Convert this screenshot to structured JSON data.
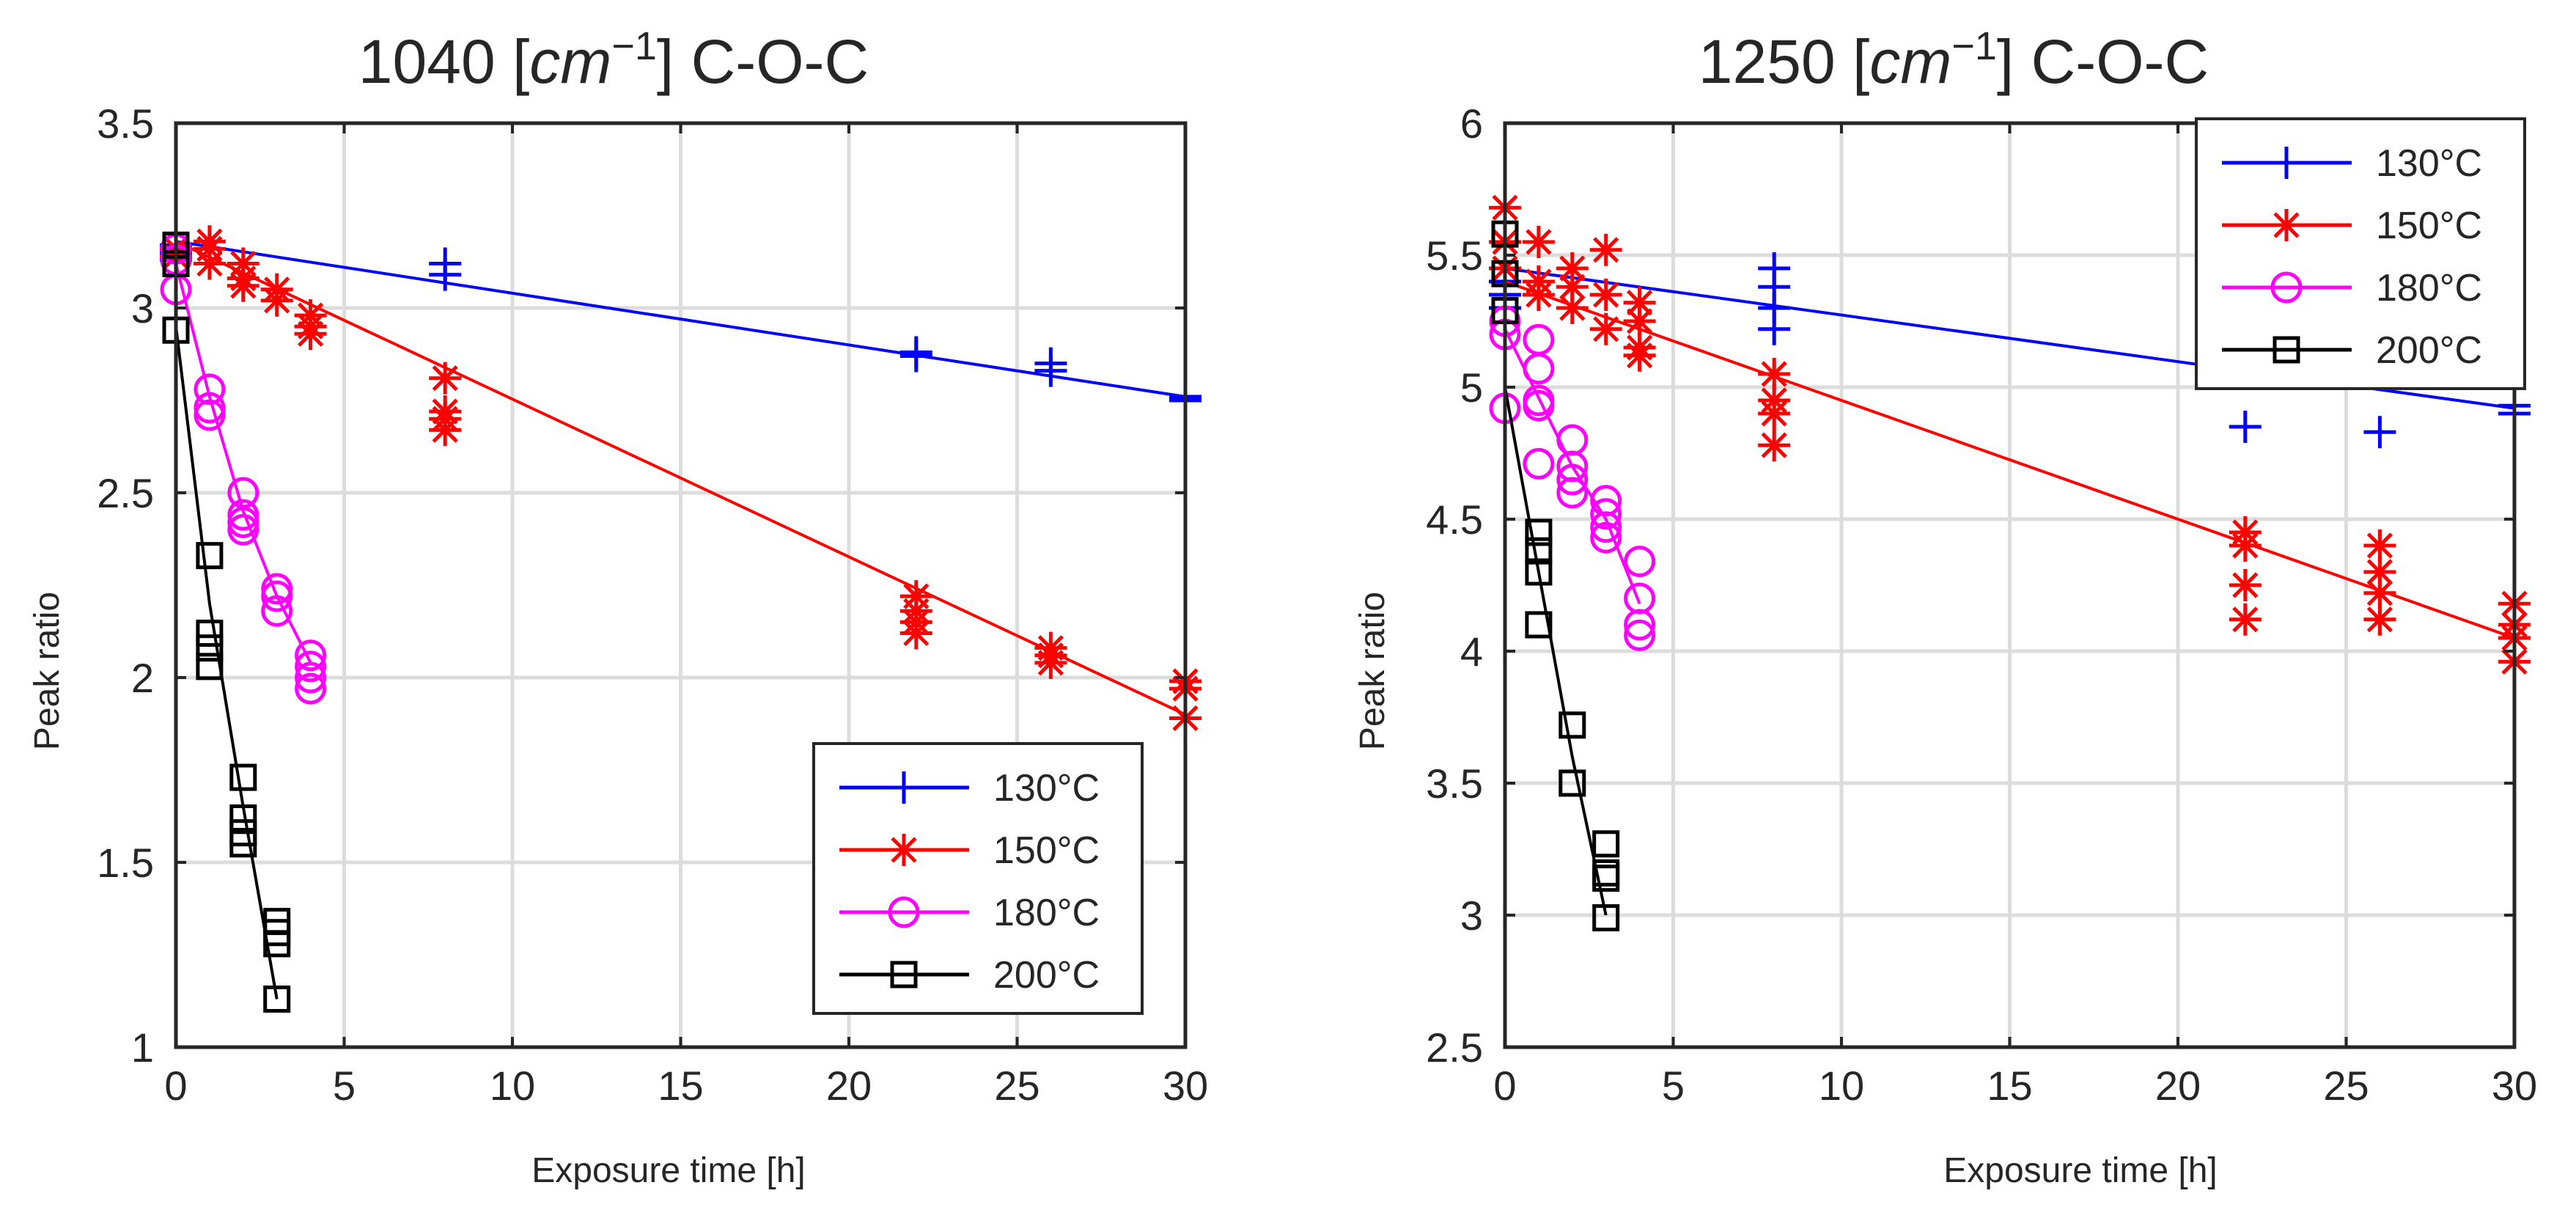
{
  "chart_data": [
    {
      "type": "line",
      "title": "1040 [cm⁻¹] C-O-C",
      "title_parts": {
        "prefix": "1040 [",
        "unit": "cm",
        "exponent": "−1",
        "suffix": "] C-O-C"
      },
      "xlabel": "Exposure time [h]",
      "ylabel": "Peak ratio",
      "xlim": [
        0,
        30
      ],
      "ylim": [
        1,
        3.5
      ],
      "xticks": [
        0,
        5,
        10,
        15,
        20,
        25,
        30
      ],
      "yticks": [
        1,
        1.5,
        2,
        2.5,
        3,
        3.5
      ],
      "ytick_labels": [
        "1",
        "1.5",
        "2",
        "2.5",
        "3",
        "3.5"
      ],
      "grid": true,
      "legend_position": "bottom-right",
      "series": [
        {
          "name": "130°C",
          "color": "#0000ff",
          "marker": "plus",
          "fit": [
            [
              0,
              3.18
            ],
            [
              30,
              2.76
            ]
          ],
          "points": [
            [
              0,
              3.17
            ],
            [
              0,
              3.15
            ],
            [
              0,
              3.13
            ],
            [
              8,
              3.12
            ],
            [
              8,
              3.09
            ],
            [
              22,
              2.88
            ],
            [
              22,
              2.87
            ],
            [
              26,
              2.85
            ],
            [
              26,
              2.83
            ],
            [
              30,
              2.76
            ],
            [
              30,
              2.75
            ]
          ]
        },
        {
          "name": "150°C",
          "color": "#ff0000",
          "marker": "asterisk",
          "fit": [
            [
              0,
              3.18
            ],
            [
              30,
              1.9
            ]
          ],
          "points": [
            [
              0,
              3.16
            ],
            [
              0,
              3.14
            ],
            [
              1,
              3.18
            ],
            [
              1,
              3.16
            ],
            [
              1,
              3.12
            ],
            [
              2,
              3.12
            ],
            [
              2,
              3.08
            ],
            [
              2,
              3.06
            ],
            [
              3,
              3.05
            ],
            [
              3,
              3.02
            ],
            [
              4,
              2.98
            ],
            [
              4,
              2.95
            ],
            [
              4,
              2.93
            ],
            [
              8,
              2.81
            ],
            [
              8,
              2.72
            ],
            [
              8,
              2.7
            ],
            [
              8,
              2.67
            ],
            [
              22,
              2.22
            ],
            [
              22,
              2.18
            ],
            [
              22,
              2.15
            ],
            [
              22,
              2.12
            ],
            [
              26,
              2.08
            ],
            [
              26,
              2.06
            ],
            [
              26,
              2.04
            ],
            [
              30,
              1.99
            ],
            [
              30,
              1.97
            ],
            [
              30,
              1.89
            ]
          ]
        },
        {
          "name": "180°C",
          "color": "#ff00ff",
          "marker": "circle",
          "fit": [
            [
              0,
              3.12
            ],
            [
              1,
              2.76
            ],
            [
              2,
              2.45
            ],
            [
              3,
              2.22
            ],
            [
              4,
              2.04
            ]
          ],
          "points": [
            [
              0,
              3.16
            ],
            [
              0,
              3.13
            ],
            [
              0,
              3.05
            ],
            [
              1,
              2.78
            ],
            [
              1,
              2.73
            ],
            [
              1,
              2.71
            ],
            [
              2,
              2.5
            ],
            [
              2,
              2.44
            ],
            [
              2,
              2.42
            ],
            [
              2,
              2.4
            ],
            [
              3,
              2.24
            ],
            [
              3,
              2.22
            ],
            [
              3,
              2.18
            ],
            [
              4,
              2.06
            ],
            [
              4,
              2.03
            ],
            [
              4,
              2.0
            ],
            [
              4,
              1.97
            ]
          ]
        },
        {
          "name": "200°C",
          "color": "#000000",
          "marker": "square",
          "fit": [
            [
              0,
              2.95
            ],
            [
              1,
              2.2
            ],
            [
              2,
              1.65
            ],
            [
              3,
              1.13
            ]
          ],
          "points": [
            [
              0,
              3.17
            ],
            [
              0,
              3.12
            ],
            [
              0,
              2.94
            ],
            [
              1,
              2.33
            ],
            [
              1,
              2.12
            ],
            [
              1,
              2.08
            ],
            [
              1,
              2.03
            ],
            [
              2,
              1.73
            ],
            [
              2,
              1.62
            ],
            [
              2,
              1.58
            ],
            [
              2,
              1.55
            ],
            [
              3,
              1.34
            ],
            [
              3,
              1.31
            ],
            [
              3,
              1.28
            ],
            [
              3,
              1.13
            ]
          ]
        }
      ]
    },
    {
      "type": "line",
      "title": "1250 [cm⁻¹] C-O-C",
      "title_parts": {
        "prefix": "1250 [",
        "unit": "cm",
        "exponent": "−1",
        "suffix": "] C-O-C"
      },
      "xlabel": "Exposure time [h]",
      "ylabel": "Peak ratio",
      "xlim": [
        0,
        30
      ],
      "ylim": [
        2.5,
        6
      ],
      "xticks": [
        0,
        5,
        10,
        15,
        20,
        25,
        30
      ],
      "yticks": [
        2.5,
        3,
        3.5,
        4,
        4.5,
        5,
        5.5,
        6
      ],
      "ytick_labels": [
        "2.5",
        "3",
        "3.5",
        "4",
        "4.5",
        "5",
        "5.5",
        "6"
      ],
      "grid": true,
      "legend_position": "top-right",
      "series": [
        {
          "name": "130°C",
          "color": "#0000ff",
          "marker": "plus",
          "fit": [
            [
              0,
              5.45
            ],
            [
              30,
              4.92
            ]
          ],
          "points": [
            [
              0,
              5.4
            ],
            [
              0,
              5.35
            ],
            [
              0,
              5.3
            ],
            [
              8,
              5.45
            ],
            [
              8,
              5.38
            ],
            [
              8,
              5.3
            ],
            [
              8,
              5.22
            ],
            [
              22,
              4.85
            ],
            [
              26,
              4.83
            ],
            [
              30,
              4.93
            ],
            [
              30,
              4.9
            ]
          ]
        },
        {
          "name": "150°C",
          "color": "#ff0000",
          "marker": "asterisk",
          "fit": [
            [
              0,
              5.4
            ],
            [
              30,
              4.05
            ]
          ],
          "points": [
            [
              0,
              5.68
            ],
            [
              0,
              5.55
            ],
            [
              0,
              5.45
            ],
            [
              1,
              5.55
            ],
            [
              1,
              5.4
            ],
            [
              1,
              5.35
            ],
            [
              2,
              5.45
            ],
            [
              2,
              5.38
            ],
            [
              2,
              5.3
            ],
            [
              3,
              5.52
            ],
            [
              3,
              5.35
            ],
            [
              3,
              5.22
            ],
            [
              4,
              5.32
            ],
            [
              4,
              5.25
            ],
            [
              4,
              5.15
            ],
            [
              4,
              5.12
            ],
            [
              8,
              5.05
            ],
            [
              8,
              4.95
            ],
            [
              8,
              4.9
            ],
            [
              8,
              4.78
            ],
            [
              22,
              4.45
            ],
            [
              22,
              4.4
            ],
            [
              22,
              4.25
            ],
            [
              22,
              4.12
            ],
            [
              26,
              4.4
            ],
            [
              26,
              4.3
            ],
            [
              26,
              4.22
            ],
            [
              26,
              4.12
            ],
            [
              30,
              4.18
            ],
            [
              30,
              4.1
            ],
            [
              30,
              4.05
            ],
            [
              30,
              3.96
            ]
          ]
        },
        {
          "name": "180°C",
          "color": "#ff00ff",
          "marker": "circle",
          "fit": [
            [
              0,
              5.22
            ],
            [
              1,
              4.96
            ],
            [
              2,
              4.7
            ],
            [
              3,
              4.5
            ],
            [
              4,
              4.18
            ]
          ],
          "points": [
            [
              0,
              5.25
            ],
            [
              0,
              5.2
            ],
            [
              0,
              4.92
            ],
            [
              1,
              5.18
            ],
            [
              1,
              5.07
            ],
            [
              1,
              4.95
            ],
            [
              1,
              4.93
            ],
            [
              1,
              4.71
            ],
            [
              2,
              4.8
            ],
            [
              2,
              4.7
            ],
            [
              2,
              4.65
            ],
            [
              2,
              4.6
            ],
            [
              3,
              4.57
            ],
            [
              3,
              4.52
            ],
            [
              3,
              4.47
            ],
            [
              3,
              4.43
            ],
            [
              4,
              4.34
            ],
            [
              4,
              4.2
            ],
            [
              4,
              4.1
            ],
            [
              4,
              4.06
            ]
          ]
        },
        {
          "name": "200°C",
          "color": "#000000",
          "marker": "square",
          "fit": [
            [
              0,
              5.0
            ],
            [
              1,
              4.3
            ],
            [
              2,
              3.6
            ],
            [
              3,
              3.0
            ]
          ],
          "points": [
            [
              0,
              5.58
            ],
            [
              0,
              5.43
            ],
            [
              0,
              5.29
            ],
            [
              1,
              4.45
            ],
            [
              1,
              4.38
            ],
            [
              1,
              4.3
            ],
            [
              1,
              4.1
            ],
            [
              2,
              3.72
            ],
            [
              2,
              3.5
            ],
            [
              3,
              3.27
            ],
            [
              3,
              3.16
            ],
            [
              3,
              3.14
            ],
            [
              3,
              2.99
            ]
          ]
        }
      ]
    }
  ]
}
